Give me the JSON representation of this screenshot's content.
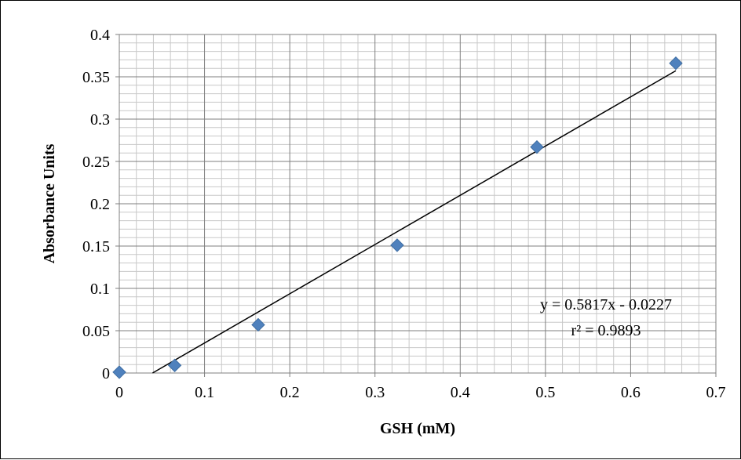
{
  "chart_data": {
    "type": "scatter",
    "title": "",
    "xlabel": "GSH (mM)",
    "ylabel": "Absorbance Units",
    "xlim": [
      0,
      0.7
    ],
    "ylim": [
      0,
      0.4
    ],
    "x_ticks": [
      "0",
      "0.1",
      "0.2",
      "0.3",
      "0.4",
      "0.5",
      "0.6",
      "0.7"
    ],
    "y_ticks": [
      "0",
      "0.05",
      "0.1",
      "0.15",
      "0.2",
      "0.25",
      "0.3",
      "0.35",
      "0.4"
    ],
    "grid": true,
    "series": [
      {
        "marker": "diamond",
        "color": "#4f81bd",
        "x": [
          0,
          0.065,
          0.163,
          0.326,
          0.49,
          0.653
        ],
        "y": [
          0.001,
          0.009,
          0.057,
          0.151,
          0.267,
          0.366
        ]
      }
    ],
    "trendline": {
      "slope": 0.5817,
      "intercept": -0.0227,
      "x_range": [
        0.039,
        0.653
      ],
      "color": "#000000"
    },
    "annotations": {
      "equation": "y = 0.5817x - 0.0227",
      "r_squared": "r² = 0.9893"
    }
  }
}
